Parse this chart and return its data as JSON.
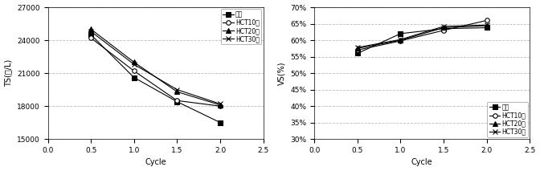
{
  "left": {
    "xlabel": "Cycle",
    "ylabel": "TS(㎎/L)",
    "xlim": [
      0,
      2.5
    ],
    "ylim": [
      15000,
      27000
    ],
    "yticks": [
      15000,
      18000,
      21000,
      24000,
      27000
    ],
    "xticks": [
      0,
      0.5,
      1,
      1.5,
      2,
      2.5
    ],
    "x": [
      0.5,
      1,
      1.5,
      2
    ],
    "series": [
      {
        "label": "원수",
        "marker": "s",
        "fillstyle": "full",
        "values": [
          24500,
          20600,
          18400,
          16500
        ]
      },
      {
        "label": "HCT10회",
        "marker": "o",
        "fillstyle": "none",
        "values": [
          24200,
          21200,
          18500,
          18000
        ]
      },
      {
        "label": "HCT20회",
        "marker": "^",
        "fillstyle": "full",
        "values": [
          25000,
          22000,
          19300,
          18100
        ]
      },
      {
        "label": "HCT30회",
        "marker": "x",
        "fillstyle": "full",
        "values": [
          24800,
          21800,
          19500,
          18200
        ]
      }
    ],
    "legend_loc": "upper right"
  },
  "right": {
    "xlabel": "Cycle",
    "ylabel": "VS(%)",
    "xlim": [
      0,
      2.5
    ],
    "ylim": [
      0.3,
      0.7
    ],
    "yticks": [
      0.3,
      0.35,
      0.4,
      0.45,
      0.5,
      0.55,
      0.6,
      0.65,
      0.7
    ],
    "xticks": [
      0,
      0.5,
      1,
      1.5,
      2,
      2.5
    ],
    "x": [
      0.5,
      1,
      1.5,
      2
    ],
    "series": [
      {
        "label": "원수",
        "marker": "s",
        "fillstyle": "full",
        "values": [
          0.56,
          0.62,
          0.635,
          0.638
        ]
      },
      {
        "label": "HCT10회",
        "marker": "o",
        "fillstyle": "none",
        "values": [
          0.57,
          0.598,
          0.63,
          0.66
        ]
      },
      {
        "label": "HCT20회",
        "marker": "^",
        "fillstyle": "full",
        "values": [
          0.575,
          0.6,
          0.638,
          0.644
        ]
      },
      {
        "label": "HCT30회",
        "marker": "x",
        "fillstyle": "full",
        "values": [
          0.578,
          0.602,
          0.642,
          0.646
        ]
      }
    ],
    "legend_loc": "lower right"
  },
  "line_color": "#000000",
  "background_color": "#ffffff",
  "grid_color": "#bbbbbb",
  "grid_linestyle": "--"
}
